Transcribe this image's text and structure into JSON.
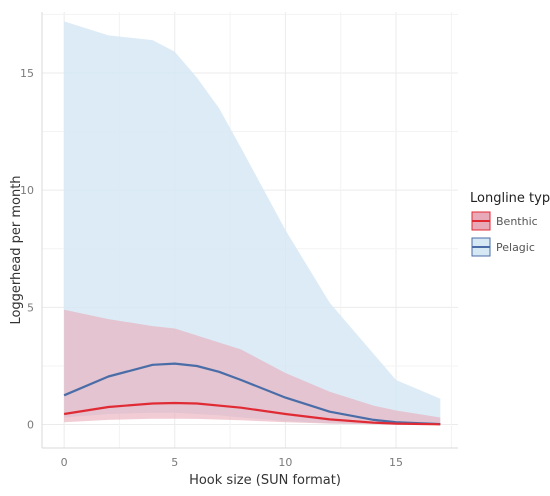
{
  "chart_data": {
    "type": "line",
    "title": "",
    "xlabel": "Hook size (SUN format)",
    "ylabel": "Loggerhead per month",
    "xlim": [
      -1,
      17.8
    ],
    "ylim": [
      -1,
      17.6
    ],
    "x_ticks": [
      "0",
      "5",
      "10",
      "15"
    ],
    "y_ticks": [
      "0",
      "5",
      "10",
      "15"
    ],
    "x_tick_values": [
      0,
      5,
      10,
      15
    ],
    "y_tick_values": [
      0,
      5,
      10,
      15
    ],
    "grid": true,
    "legend": {
      "title": "Longline type",
      "position": "right"
    },
    "series": [
      {
        "name": "Benthic",
        "color": "#e02b35",
        "fill": "#e8aab8",
        "x": [
          0,
          2,
          4,
          5,
          6,
          8,
          10,
          12,
          14,
          15,
          17
        ],
        "y": [
          0.45,
          0.75,
          0.9,
          0.92,
          0.9,
          0.72,
          0.45,
          0.22,
          0.08,
          0.04,
          0.01
        ],
        "lower": [
          0.1,
          0.2,
          0.25,
          0.25,
          0.24,
          0.18,
          0.1,
          0.04,
          0.01,
          0.0,
          0.0
        ],
        "upper": [
          4.9,
          4.5,
          4.2,
          4.1,
          3.8,
          3.2,
          2.2,
          1.4,
          0.8,
          0.6,
          0.3
        ]
      },
      {
        "name": "Pelagic",
        "color": "#4a6da8",
        "fill": "#d6e8f4",
        "x": [
          0,
          2,
          4,
          5,
          6,
          7,
          8,
          10,
          12,
          14,
          15,
          17
        ],
        "y": [
          1.25,
          2.05,
          2.55,
          2.6,
          2.5,
          2.25,
          1.9,
          1.15,
          0.55,
          0.2,
          0.1,
          0.02
        ],
        "lower": [
          0.3,
          0.45,
          0.5,
          0.5,
          0.45,
          0.4,
          0.3,
          0.15,
          0.05,
          0.01,
          0.0,
          0.0
        ],
        "upper": [
          17.2,
          16.6,
          16.4,
          15.9,
          14.8,
          13.5,
          11.8,
          8.3,
          5.2,
          3.0,
          1.9,
          1.1
        ]
      }
    ]
  }
}
